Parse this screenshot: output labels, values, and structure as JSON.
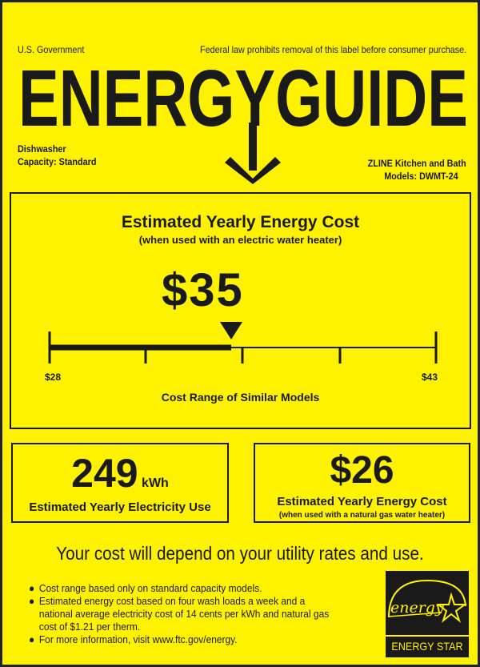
{
  "header": {
    "government": "U.S. Government",
    "notice": "Federal law prohibits removal of this label before consumer purchase.",
    "logo_text": "ENERGYGUIDE"
  },
  "product": {
    "type": "Dishwasher",
    "capacity": "Capacity: Standard",
    "brand": "ZLINE Kitchen and Bath",
    "models": "Models: DWMT-24"
  },
  "main": {
    "title": "Estimated Yearly Energy Cost",
    "subtitle": "(when used with an electric water heater)",
    "cost": "$35",
    "cost_value": 35,
    "range_min": "$28",
    "range_max": "$43",
    "range_min_value": 28,
    "range_max_value": 43,
    "range_label": "Cost Range of Similar Models"
  },
  "electricity": {
    "value": "249",
    "unit": "kWh",
    "label": "Estimated Yearly Electricity Use"
  },
  "gas": {
    "value": "$26",
    "label": "Estimated Yearly Energy Cost",
    "sublabel": "(when used with a natural gas water heater)"
  },
  "footer": {
    "headline": "Your cost will depend on your utility rates and use.",
    "bullets": [
      "Cost range based only on standard capacity models.",
      "Estimated energy cost based on four wash loads a week and a national average electricity cost of 14 cents per kWh and natural gas cost of $1.21 per therm.",
      "For more information, visit www.ftc.gov/energy."
    ]
  },
  "energy_star": {
    "script": "energy",
    "label": "ENERGY STAR"
  },
  "colors": {
    "background": "#fff200",
    "ink": "#1a1a1a"
  }
}
